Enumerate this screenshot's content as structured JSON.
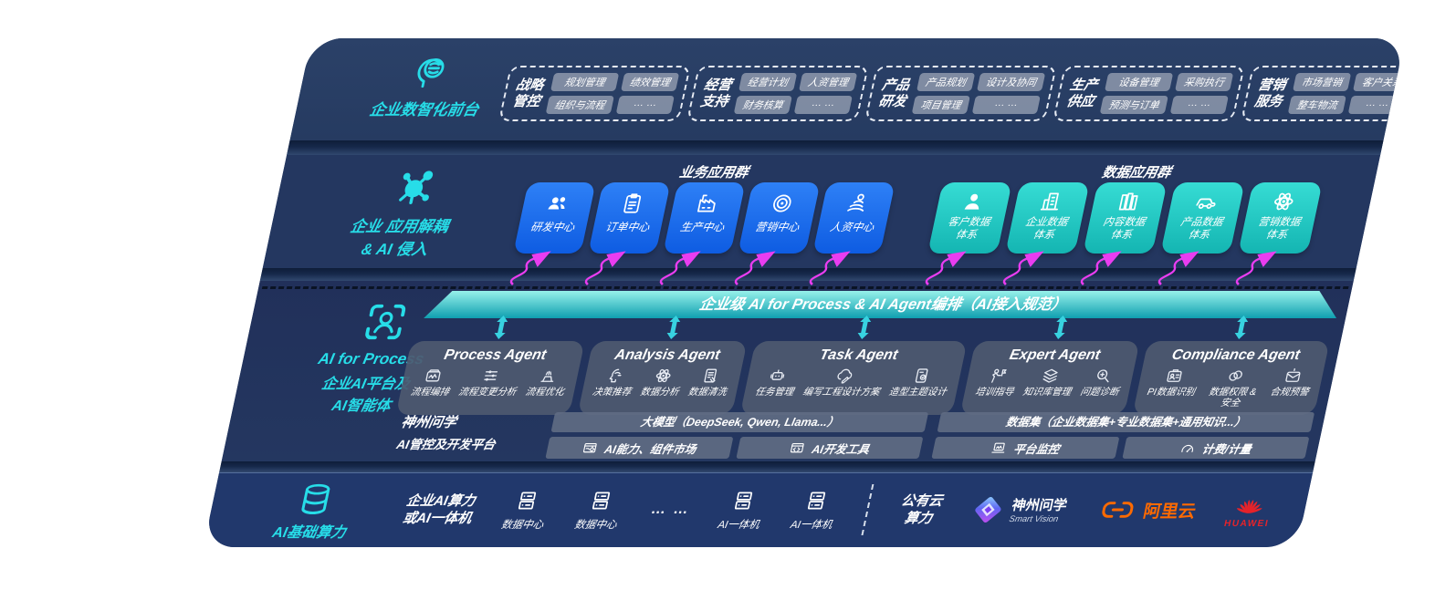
{
  "colors": {
    "accent_cyan": "#27dde8",
    "card_blue": "#1668e8",
    "card_teal": "#24cfc8",
    "arrow_magenta": "#e93df0",
    "orchestration_teal": "#18a9b8",
    "alibaba_orange": "#ff6a00",
    "huawei_red": "#e6232a"
  },
  "front_office": {
    "label": "企业数智化前台",
    "groups": [
      {
        "title": "战略管控",
        "items": [
          "规划管理",
          "绩效管理",
          "组织与流程",
          "… …"
        ]
      },
      {
        "title": "经营支持",
        "items": [
          "经营计划",
          "人资管理",
          "财务核算",
          "… …"
        ]
      },
      {
        "title": "产品研发",
        "items": [
          "产品规划",
          "设计及协同",
          "项目管理",
          "… …"
        ]
      },
      {
        "title": "生产供应",
        "items": [
          "设备管理",
          "采购执行",
          "预测与订单",
          "… …"
        ]
      },
      {
        "title": "营销服务",
        "items": [
          "市场营销",
          "客户关系",
          "整车物流",
          "… …"
        ]
      }
    ]
  },
  "decoupling": {
    "label_line1": "企业 应用解耦",
    "label_line2": "& AI 侵入",
    "business_group_title": "业务应用群",
    "data_group_title": "数据应用群",
    "business_apps": [
      {
        "label": "研发中心",
        "icon": "team-icon"
      },
      {
        "label": "订单中心",
        "icon": "clipboard-icon"
      },
      {
        "label": "生产中心",
        "icon": "factory-icon"
      },
      {
        "label": "营销中心",
        "icon": "target-icon"
      },
      {
        "label": "人资中心",
        "icon": "hr-icon"
      }
    ],
    "data_systems": [
      {
        "line1": "客户数据",
        "line2": "体系",
        "icon": "person-icon"
      },
      {
        "line1": "企业数据",
        "line2": "体系",
        "icon": "building-icon"
      },
      {
        "line1": "内容数据",
        "line2": "体系",
        "icon": "books-icon"
      },
      {
        "line1": "产品数据",
        "line2": "体系",
        "icon": "car-icon"
      },
      {
        "line1": "营销数据",
        "line2": "体系",
        "icon": "atom-icon"
      }
    ]
  },
  "orchestration": {
    "label": "企业级 AI for Process & AI Agent编排（AI接入规范）"
  },
  "ai_platform": {
    "label_line1": "AI for Process",
    "label_line2": "企业AI平台及",
    "label_line3": "AI智能体"
  },
  "agents": [
    {
      "name": "Process Agent",
      "capabilities": [
        {
          "label": "流程编排",
          "icon": "flow-icon"
        },
        {
          "label": "流程变更分析",
          "icon": "sliders-icon"
        },
        {
          "label": "流程优化",
          "icon": "optimize-icon"
        }
      ]
    },
    {
      "name": "Analysis Agent",
      "capabilities": [
        {
          "label": "决策推荐",
          "icon": "decision-icon"
        },
        {
          "label": "数据分析",
          "icon": "analysis-icon"
        },
        {
          "label": "数据清洗",
          "icon": "clean-icon"
        }
      ]
    },
    {
      "name": "Task Agent",
      "capabilities": [
        {
          "label": "任务管理",
          "icon": "task-icon"
        },
        {
          "label": "编写工程设计方案",
          "icon": "cloud-pen-icon"
        },
        {
          "label": "造型主题设计",
          "icon": "theme-icon"
        }
      ]
    },
    {
      "name": "Expert Agent",
      "capabilities": [
        {
          "label": "培训指导",
          "icon": "training-icon"
        },
        {
          "label": "知识库管理",
          "icon": "layers-icon"
        },
        {
          "label": "问题诊断",
          "icon": "diagnose-icon"
        }
      ]
    },
    {
      "name": "Compliance Agent",
      "capabilities": [
        {
          "label": "PI数据识别",
          "icon": "idcard-icon"
        },
        {
          "label": "数据权限 & 安全",
          "icon": "permission-icon"
        },
        {
          "label": "合规预警",
          "icon": "alert-icon"
        }
      ]
    }
  ],
  "platform": {
    "label_line1": "神州问学",
    "label_line2": "AI管控及开发平台",
    "model_bar": "大模型（DeepSeek, Qwen, Llama...）",
    "model_cells": [
      {
        "label": "AI能力、组件市场",
        "icon": "components-icon"
      },
      {
        "label": "AI开发工具",
        "icon": "devtools-icon"
      }
    ],
    "data_bar": "数据集（企业数据集+专业数据集+通用知识...）",
    "data_cells": [
      {
        "label": "平台监控",
        "icon": "monitor-icon"
      },
      {
        "label": "计费/计量",
        "icon": "meter-icon"
      }
    ]
  },
  "infra": {
    "label": "AI基础算力",
    "compute_line1": "企业AI算力",
    "compute_line2": "或AI一体机",
    "nodes": [
      {
        "label": "数据中心",
        "icon": "server-icon"
      },
      {
        "label": "数据中心",
        "icon": "server-icon"
      },
      {
        "label": "AI一体机",
        "icon": "server-icon"
      },
      {
        "label": "AI一体机",
        "icon": "server-icon"
      }
    ],
    "dots": "… …",
    "public_cloud_line1": "公有云",
    "public_cloud_line2": "算力",
    "vendors": [
      {
        "name": "神州问学",
        "sub": "Smart Vision",
        "icon": "shenzhou-logo"
      },
      {
        "name": "阿里云",
        "icon": "aliyun-logo"
      },
      {
        "name": "HUAWEI",
        "icon": "huawei-logo"
      }
    ]
  }
}
